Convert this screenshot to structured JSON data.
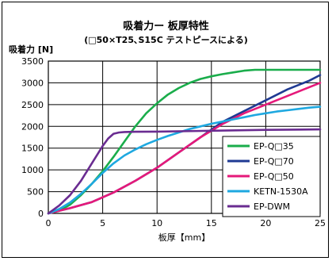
{
  "chart_data": {
    "type": "line",
    "title": "吸着力ー 板厚特性",
    "subtitle": "(□50×T25､S15C  テストピースによる)",
    "xlabel": "板厚【mm】",
    "ylabel": "吸着力 [N]",
    "xlim": [
      0,
      25
    ],
    "ylim": [
      0,
      3500
    ],
    "xticks": [
      0,
      5,
      10,
      15,
      20,
      25
    ],
    "yticks": [
      0,
      500,
      1000,
      1500,
      2000,
      2500,
      3000,
      3500
    ],
    "grid": true,
    "legend_position": "lower-right",
    "series": [
      {
        "name": "EP-Q□35",
        "color": "#1aad4b",
        "points": [
          [
            0,
            0
          ],
          [
            1,
            60
          ],
          [
            2,
            200
          ],
          [
            3,
            420
          ],
          [
            4,
            680
          ],
          [
            5,
            970
          ],
          [
            6,
            1300
          ],
          [
            7,
            1650
          ],
          [
            8,
            2000
          ],
          [
            9,
            2300
          ],
          [
            10,
            2530
          ],
          [
            11,
            2730
          ],
          [
            12,
            2880
          ],
          [
            13,
            3000
          ],
          [
            14,
            3090
          ],
          [
            15,
            3150
          ],
          [
            16,
            3200
          ],
          [
            17,
            3240
          ],
          [
            18,
            3280
          ],
          [
            19,
            3300
          ],
          [
            20,
            3300
          ],
          [
            21,
            3300
          ],
          [
            22,
            3300
          ],
          [
            23,
            3300
          ],
          [
            24,
            3300
          ],
          [
            25,
            3300
          ]
        ]
      },
      {
        "name": "EP-Q□70",
        "color": "#1f3a93",
        "points": [
          [
            0,
            0
          ],
          [
            2,
            120
          ],
          [
            4,
            260
          ],
          [
            6,
            480
          ],
          [
            8,
            750
          ],
          [
            10,
            1050
          ],
          [
            12,
            1400
          ],
          [
            14,
            1750
          ],
          [
            16,
            2100
          ],
          [
            18,
            2350
          ],
          [
            20,
            2600
          ],
          [
            22,
            2850
          ],
          [
            24,
            3050
          ],
          [
            25,
            3180
          ]
        ]
      },
      {
        "name": "EP-Q□50",
        "color": "#e5197a",
        "points": [
          [
            0,
            0
          ],
          [
            2,
            120
          ],
          [
            4,
            260
          ],
          [
            6,
            480
          ],
          [
            8,
            750
          ],
          [
            10,
            1050
          ],
          [
            12,
            1400
          ],
          [
            14,
            1750
          ],
          [
            16,
            2050
          ],
          [
            18,
            2300
          ],
          [
            20,
            2500
          ],
          [
            22,
            2700
          ],
          [
            24,
            2900
          ],
          [
            25,
            3000
          ]
        ]
      },
      {
        "name": "KETN-1530A",
        "color": "#1ea8e0",
        "points": [
          [
            0,
            0
          ],
          [
            1,
            100
          ],
          [
            2,
            250
          ],
          [
            3,
            450
          ],
          [
            4,
            680
          ],
          [
            5,
            930
          ],
          [
            6,
            1150
          ],
          [
            7,
            1330
          ],
          [
            8,
            1470
          ],
          [
            9,
            1590
          ],
          [
            10,
            1690
          ],
          [
            11,
            1780
          ],
          [
            12,
            1860
          ],
          [
            13,
            1940
          ],
          [
            14,
            2000
          ],
          [
            15,
            2060
          ],
          [
            16,
            2110
          ],
          [
            17,
            2160
          ],
          [
            18,
            2210
          ],
          [
            19,
            2260
          ],
          [
            20,
            2300
          ],
          [
            21,
            2340
          ],
          [
            22,
            2370
          ],
          [
            23,
            2400
          ],
          [
            24,
            2430
          ],
          [
            25,
            2450
          ]
        ]
      },
      {
        "name": "EP-DWM",
        "color": "#6a2c91",
        "points": [
          [
            0,
            0
          ],
          [
            1,
            180
          ],
          [
            2,
            420
          ],
          [
            3,
            750
          ],
          [
            4,
            1150
          ],
          [
            5,
            1550
          ],
          [
            5.5,
            1720
          ],
          [
            6,
            1830
          ],
          [
            6.5,
            1860
          ],
          [
            7,
            1870
          ],
          [
            8,
            1875
          ],
          [
            10,
            1880
          ],
          [
            15,
            1900
          ],
          [
            20,
            1920
          ],
          [
            25,
            1930
          ]
        ]
      }
    ]
  }
}
